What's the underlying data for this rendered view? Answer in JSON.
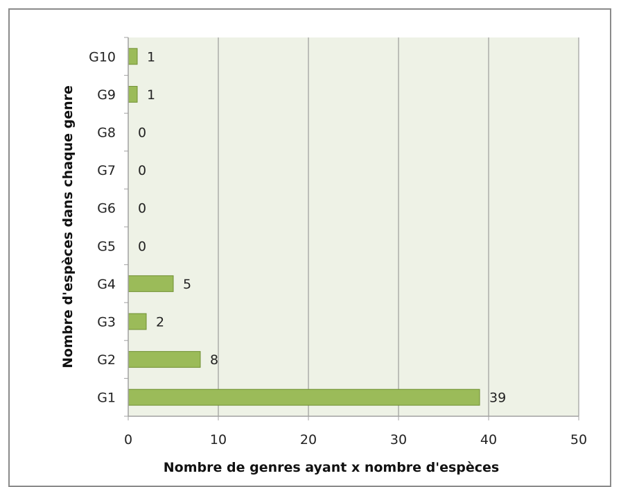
{
  "chart_data": {
    "type": "bar",
    "orientation": "horizontal",
    "categories": [
      "G1",
      "G2",
      "G3",
      "G4",
      "G5",
      "G6",
      "G7",
      "G8",
      "G9",
      "G10"
    ],
    "values": [
      39,
      8,
      2,
      5,
      0,
      0,
      0,
      0,
      1,
      1
    ],
    "data_labels": [
      "39",
      "8",
      "2",
      "5",
      "0",
      "0",
      "0",
      "0",
      "1",
      "1"
    ],
    "xlabel": "Nombre de genres ayant x nombre d'espèces",
    "ylabel": "Nombre d'espèces dans chaque genre",
    "xlim": [
      0,
      50
    ],
    "x_ticks": [
      0,
      10,
      20,
      30,
      40,
      50
    ],
    "grid": "vertical",
    "legend": "none",
    "colors": {
      "bar_fill": "#9bbb59",
      "bar_stroke": "#6f8f31",
      "plot_background": "#eef2e6",
      "gridline": "#8a8a8a",
      "axis": "#a0a0a0"
    }
  }
}
